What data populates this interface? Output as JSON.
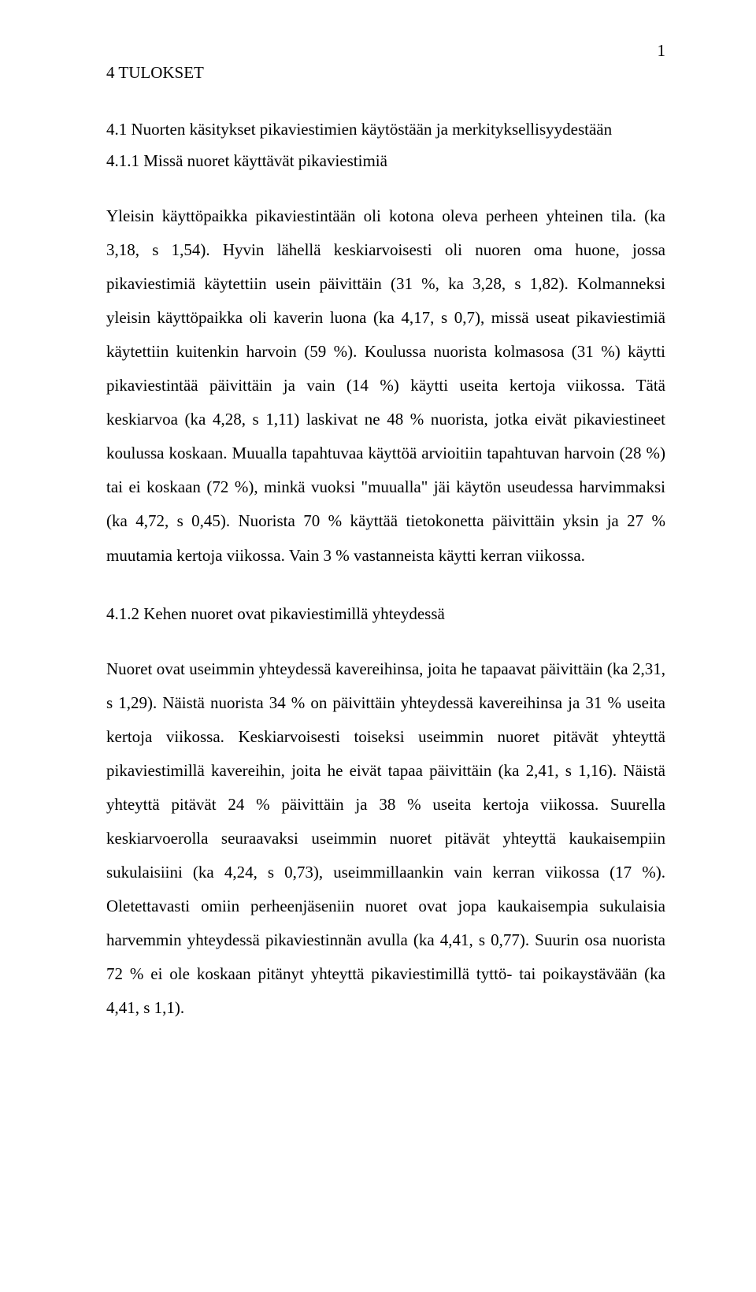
{
  "page_number": "1",
  "section_heading": "4 TULOKSET",
  "subsection_heading": "4.1 Nuorten käsitykset pikaviestimien käytöstään ja merkityksellisyydestään",
  "sub2_a": "4.1.1 Missä nuoret käyttävät pikaviestimiä",
  "para_a": "Yleisin käyttöpaikka pikaviestintään oli kotona oleva perheen yhteinen tila. (ka 3,18, s 1,54). Hyvin lähellä keskiarvoisesti oli nuoren oma huone, jossa pikaviestimiä käytettiin usein päivittäin (31 %, ka 3,28, s 1,82). Kolmanneksi yleisin käyttöpaikka oli kaverin luona (ka 4,17, s 0,7), missä useat pikaviestimiä käytettiin kuitenkin harvoin (59 %). Koulussa nuorista kolmasosa (31 %) käytti pikaviestintää päivittäin ja vain (14 %) käytti useita kertoja viikossa. Tätä keskiarvoa (ka 4,28, s 1,11) laskivat ne 48 % nuorista, jotka eivät pikaviestineet koulussa koskaan. Muualla tapahtuvaa käyttöä arvioitiin tapahtuvan harvoin (28 %) tai ei koskaan (72 %), minkä vuoksi \"muualla\" jäi käytön useudessa harvimmaksi (ka 4,72, s 0,45). Nuorista 70 % käyttää tietokonetta päivittäin yksin ja 27 % muutamia kertoja viikossa. Vain 3 % vastanneista käytti kerran viikossa.",
  "sub2_b": "4.1.2 Kehen nuoret ovat pikaviestimillä yhteydessä",
  "para_b": "Nuoret ovat useimmin yhteydessä kavereihinsa, joita he tapaavat päivittäin (ka 2,31, s 1,29). Näistä nuorista 34 % on päivittäin yhteydessä kavereihinsa ja 31 % useita kertoja viikossa. Keskiarvoisesti toiseksi useimmin nuoret pitävät yhteyttä pikaviestimillä kavereihin, joita he eivät tapaa päivittäin (ka 2,41, s 1,16). Näistä yhteyttä pitävät 24 % päivittäin ja 38 % useita kertoja viikossa. Suurella keskiarvoerolla seuraavaksi useimmin nuoret pitävät yhteyttä kaukaisempiin sukulaisiini (ka 4,24, s 0,73), useimmillaankin vain kerran viikossa (17 %). Oletettavasti omiin perheenjäseniin nuoret ovat jopa kaukaisempia sukulaisia harvemmin yhteydessä pikaviestinnän avulla (ka 4,41, s 0,77). Suurin osa nuorista 72 % ei ole koskaan pitänyt yhteyttä pikaviestimillä tyttö- tai poikaystävään (ka 4,41, s 1,1)."
}
